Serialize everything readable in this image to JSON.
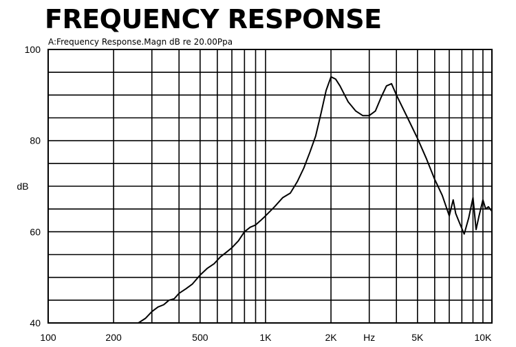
{
  "chart_data": {
    "type": "line",
    "title": "FREQUENCY RESPONSE",
    "subtitle": "A:Frequency Response.Magn dB re 20.00Ppa",
    "xlabel": "Hz",
    "ylabel": "dB",
    "x_scale": "log",
    "xlim": [
      100,
      11000
    ],
    "ylim": [
      40,
      100
    ],
    "grid": true,
    "x_ticks": [
      100,
      200,
      500,
      1000,
      2000,
      5000,
      10000
    ],
    "x_tick_labels": [
      "100",
      "200",
      "500",
      "1K",
      "2K",
      "5K",
      "10K"
    ],
    "y_ticks": [
      40,
      60,
      80,
      100
    ],
    "y_tick_labels": [
      "40",
      "60",
      "80",
      "100"
    ],
    "series": [
      {
        "x": [
          260,
          280,
          300,
          320,
          340,
          360,
          380,
          400,
          430,
          460,
          500,
          540,
          580,
          620,
          660,
          700,
          750,
          800,
          850,
          900,
          950,
          1000,
          1100,
          1200,
          1300,
          1400,
          1500,
          1600,
          1700,
          1800,
          1900,
          2000,
          2100,
          2200,
          2400,
          2600,
          2800,
          3000,
          3200,
          3400,
          3600,
          3800,
          4000,
          4500,
          5000,
          5500,
          6000,
          6500,
          7000,
          7300,
          7500,
          7800,
          8200,
          8600,
          9000,
          9300,
          9600,
          10000,
          10300,
          10600,
          11000
        ],
        "y": [
          40,
          41,
          42.5,
          43.5,
          44,
          45,
          45.3,
          46.5,
          47.5,
          48.5,
          50.5,
          52,
          53,
          54.5,
          55.5,
          56.5,
          58,
          60,
          61,
          61.5,
          62.5,
          63.5,
          65.5,
          67.5,
          68.5,
          71,
          74,
          77.5,
          81,
          86,
          91,
          94,
          93.5,
          92,
          88.5,
          86.5,
          85.5,
          85.5,
          86.5,
          89.5,
          92,
          92.5,
          90,
          85,
          80.5,
          76,
          71.5,
          68,
          63.5,
          67,
          64,
          62,
          59.5,
          63,
          67.5,
          60.5,
          63.5,
          67,
          65,
          65.5,
          64.5
        ]
      }
    ]
  }
}
